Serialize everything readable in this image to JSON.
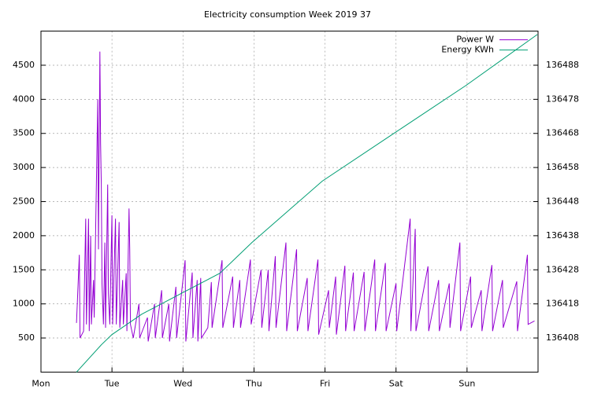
{
  "chart_data": {
    "type": "line",
    "title": "Electricity consumption Week 2019 37",
    "xlim": [
      0,
      7
    ],
    "xticks": [
      {
        "value": 0,
        "label": "Mon"
      },
      {
        "value": 1,
        "label": "Tue"
      },
      {
        "value": 2,
        "label": "Wed"
      },
      {
        "value": 3,
        "label": "Thu"
      },
      {
        "value": 4,
        "label": "Fri"
      },
      {
        "value": 5,
        "label": "Sat"
      },
      {
        "value": 6,
        "label": "Sun"
      }
    ],
    "ylim": [
      0,
      5000
    ],
    "yticks": [
      500,
      1000,
      1500,
      2000,
      2500,
      3000,
      3500,
      4000,
      4500
    ],
    "y2lim": [
      136398,
      136498
    ],
    "y2ticks": [
      136408,
      136418,
      136428,
      136438,
      136448,
      136458,
      136468,
      136478,
      136488
    ],
    "grid": true,
    "legend": "top-right",
    "series": [
      {
        "name": "Power W",
        "color": "#9400d3",
        "x": [
          0.5,
          0.54,
          0.55,
          0.6,
          0.63,
          0.64,
          0.67,
          0.68,
          0.7,
          0.71,
          0.74,
          0.75,
          0.8,
          0.81,
          0.83,
          0.84,
          0.85,
          0.86,
          0.88,
          0.9,
          0.91,
          0.94,
          0.95,
          0.97,
          1.0,
          1.01,
          1.05,
          1.06,
          1.1,
          1.11,
          1.15,
          1.16,
          1.2,
          1.21,
          1.24,
          1.25,
          1.26,
          1.28,
          1.3,
          1.38,
          1.39,
          1.5,
          1.51,
          1.6,
          1.61,
          1.7,
          1.71,
          1.8,
          1.81,
          1.9,
          1.91,
          2.03,
          2.04,
          2.13,
          2.14,
          2.2,
          2.21,
          2.25,
          2.26,
          2.35,
          2.4,
          2.41,
          2.55,
          2.56,
          2.7,
          2.71,
          2.8,
          2.81,
          2.95,
          2.96,
          3.1,
          3.11,
          3.2,
          3.21,
          3.3,
          3.31,
          3.45,
          3.46,
          3.6,
          3.61,
          3.75,
          3.76,
          3.9,
          3.91,
          4.05,
          4.06,
          4.15,
          4.16,
          4.28,
          4.29,
          4.4,
          4.41,
          4.55,
          4.56,
          4.7,
          4.71,
          4.85,
          4.86,
          5.0,
          5.01,
          5.2,
          5.21,
          5.27,
          5.28,
          5.45,
          5.46,
          5.6,
          5.61,
          5.75,
          5.76,
          5.9,
          5.91,
          6.05,
          6.06,
          6.2,
          6.21,
          6.35,
          6.36,
          6.5,
          6.51,
          6.7,
          6.71,
          6.85,
          6.86,
          6.95
        ],
        "values": [
          720,
          1720,
          500,
          600,
          2250,
          700,
          2250,
          600,
          2000,
          700,
          1350,
          800,
          4000,
          1800,
          4700,
          3350,
          2750,
          1300,
          700,
          1900,
          650,
          2750,
          1150,
          700,
          2300,
          700,
          2250,
          700,
          2200,
          650,
          1350,
          700,
          1450,
          600,
          2400,
          1800,
          700,
          600,
          500,
          1000,
          500,
          800,
          450,
          1000,
          500,
          1200,
          500,
          1000,
          450,
          1250,
          500,
          1640,
          450,
          1460,
          500,
          1350,
          450,
          1380,
          500,
          650,
          1320,
          650,
          1640,
          650,
          1400,
          650,
          1350,
          650,
          1650,
          700,
          1500,
          650,
          1500,
          600,
          1700,
          650,
          1900,
          600,
          1800,
          600,
          1380,
          600,
          1650,
          550,
          1200,
          650,
          1400,
          550,
          1560,
          600,
          1460,
          600,
          1470,
          600,
          1650,
          600,
          1600,
          600,
          1300,
          600,
          2250,
          600,
          2100,
          600,
          1550,
          600,
          1350,
          600,
          1300,
          650,
          1900,
          600,
          1400,
          650,
          1200,
          600,
          1570,
          600,
          1350,
          650,
          1330,
          600,
          1720,
          700,
          750
        ]
      },
      {
        "name": "Energy KWh",
        "color": "#009e73",
        "axis": "y2",
        "x": [
          0.5,
          0.85,
          1.0,
          1.42,
          1.97,
          2.52,
          2.97,
          3.96,
          4.97,
          5.98,
          6.99
        ],
        "values": [
          136398,
          136406,
          136409,
          136415,
          136421,
          136427,
          136436,
          136454,
          136468,
          136482,
          136497
        ]
      }
    ]
  }
}
